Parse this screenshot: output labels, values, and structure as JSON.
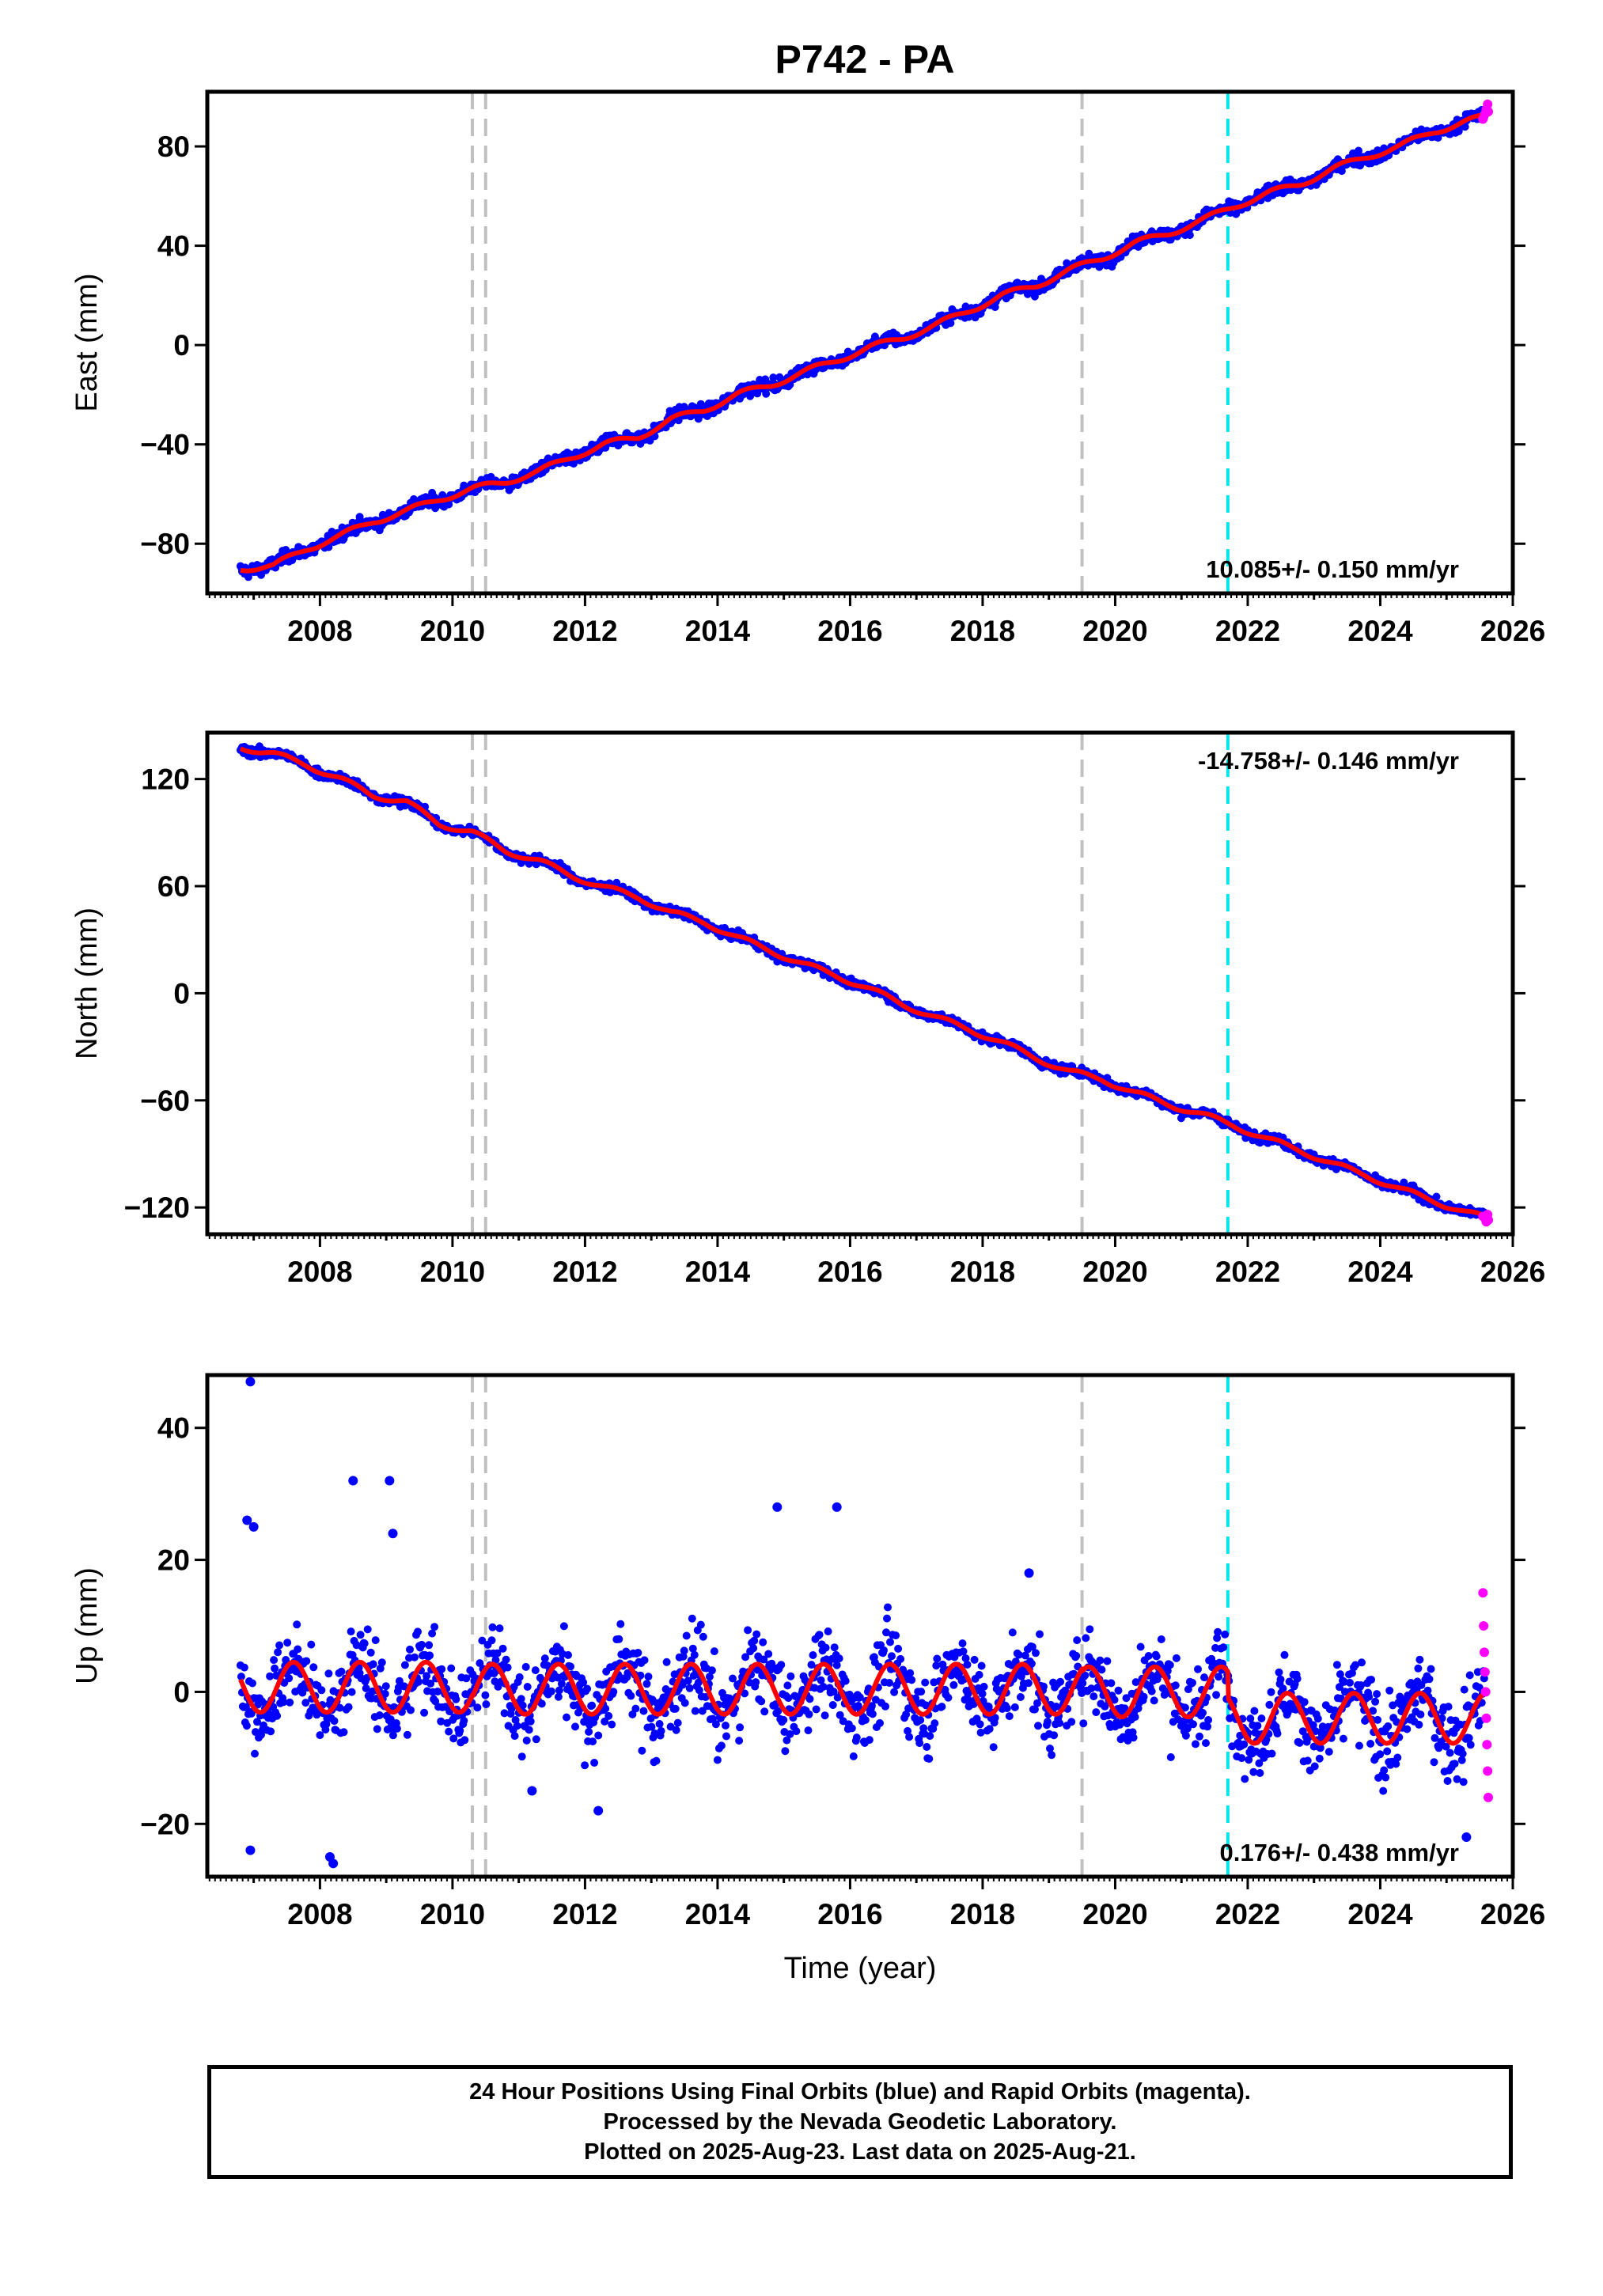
{
  "title": "P742 - PA",
  "colors": {
    "final_orbits": "#0000ff",
    "rapid_orbits": "#ff00ff",
    "model": "#ff0000",
    "equipment_change": "#c0c0c0",
    "earthquake": "#00e5ee"
  },
  "footer": {
    "line1": "24 Hour Positions Using Final Orbits (blue) and Rapid Orbits (magenta).",
    "line2": "Processed by the Nevada Geodetic Laboratory.",
    "line3": "Plotted on 2025-Aug-23. Last data on 2025-Aug-21."
  },
  "chart_data": [
    {
      "type": "scatter",
      "component": "east",
      "ylabel": "East (mm)",
      "xlabel": "",
      "xlim": [
        2006.3,
        2026.0
      ],
      "ylim": [
        -100,
        102
      ],
      "xticks": [
        2008,
        2010,
        2012,
        2014,
        2016,
        2018,
        2020,
        2022,
        2024,
        2026
      ],
      "yticks": [
        -80,
        -40,
        0,
        40,
        80
      ],
      "rate_label": "10.085+/- 0.150 mm/yr",
      "rate_position": "bottom-right",
      "gray_lines": [
        2010.3,
        2010.5,
        2019.5
      ],
      "cyan_lines": [
        2021.7
      ],
      "series": [
        {
          "role": "model",
          "x": [
            2006.8,
            2007.3,
            2007.8,
            2008.3,
            2008.8,
            2009.3,
            2009.8,
            2010.3,
            2010.8,
            2011.3,
            2011.8,
            2012.3,
            2012.8,
            2013.3,
            2013.8,
            2014.3,
            2014.8,
            2015.3,
            2015.8,
            2016.3,
            2016.8,
            2017.3,
            2017.8,
            2018.3,
            2018.8,
            2019.3,
            2019.8,
            2020.3,
            2020.8,
            2021.3,
            2021.8,
            2022.3,
            2022.8,
            2023.3,
            2023.8,
            2024.3,
            2024.8,
            2025.3,
            2025.6
          ],
          "y": [
            -90,
            -89,
            -82,
            -77,
            -71,
            -67,
            -62,
            -58,
            -55,
            -51,
            -45,
            -40,
            -37,
            -30,
            -26,
            -20,
            -16,
            -11,
            -6,
            -1,
            3,
            8,
            14,
            20,
            24,
            30,
            35,
            41,
            45,
            50,
            56,
            61,
            65,
            71,
            76,
            80,
            86,
            90,
            92
          ]
        },
        {
          "role": "rapid",
          "x": [
            2025.55,
            2025.58,
            2025.6,
            2025.62,
            2025.63
          ],
          "y": [
            91,
            93,
            95,
            97,
            94
          ]
        }
      ]
    },
    {
      "type": "scatter",
      "component": "north",
      "ylabel": "North (mm)",
      "xlabel": "",
      "xlim": [
        2006.3,
        2026.0
      ],
      "ylim": [
        -135,
        146
      ],
      "xticks": [
        2008,
        2010,
        2012,
        2014,
        2016,
        2018,
        2020,
        2022,
        2024,
        2026
      ],
      "yticks": [
        -120,
        -60,
        0,
        60,
        120
      ],
      "rate_label": "-14.758+/- 0.146 mm/yr",
      "rate_position": "top-right",
      "gray_lines": [
        2010.3,
        2010.5,
        2019.5
      ],
      "cyan_lines": [
        2021.7
      ],
      "series": [
        {
          "role": "model",
          "x": [
            2006.8,
            2007.3,
            2007.8,
            2008.3,
            2008.8,
            2009.3,
            2009.8,
            2010.3,
            2010.8,
            2011.3,
            2011.8,
            2012.3,
            2012.8,
            2013.3,
            2013.8,
            2014.3,
            2014.8,
            2015.3,
            2015.8,
            2016.3,
            2016.8,
            2017.3,
            2017.8,
            2018.3,
            2018.8,
            2019.3,
            2019.8,
            2020.3,
            2020.8,
            2021.3,
            2021.8,
            2022.3,
            2022.8,
            2023.3,
            2023.8,
            2024.3,
            2024.8,
            2025.3,
            2025.6
          ],
          "y": [
            138,
            134,
            128,
            120,
            111,
            107,
            95,
            90,
            80,
            74,
            66,
            59,
            54,
            45,
            40,
            31,
            24,
            16,
            10,
            2,
            -6,
            -14,
            -20,
            -28,
            -36,
            -44,
            -48,
            -56,
            -62,
            -68,
            -74,
            -82,
            -88,
            -96,
            -102,
            -110,
            -116,
            -123,
            -126
          ]
        },
        {
          "role": "rapid",
          "x": [
            2025.55,
            2025.58,
            2025.6,
            2025.62,
            2025.63
          ],
          "y": [
            -125,
            -126,
            -128,
            -124,
            -127
          ]
        }
      ]
    },
    {
      "type": "scatter",
      "component": "up",
      "ylabel": "Up (mm)",
      "xlabel": "Time (year)",
      "xlim": [
        2006.3,
        2026.0
      ],
      "ylim": [
        -28,
        48
      ],
      "xticks": [
        2008,
        2010,
        2012,
        2014,
        2016,
        2018,
        2020,
        2022,
        2024,
        2026
      ],
      "yticks": [
        -20,
        0,
        20,
        40
      ],
      "rate_label": "0.176+/- 0.438 mm/yr",
      "rate_position": "bottom-right",
      "gray_lines": [
        2010.3,
        2010.5,
        2019.5
      ],
      "cyan_lines": [
        2021.7
      ],
      "series": [
        {
          "role": "model",
          "seasonal": {
            "start": 2006.8,
            "end": 2025.6,
            "amplitude": 3.8,
            "phase_year": 2007.6,
            "offsets": [
              [
                2006.8,
                0.7
              ],
              [
                2010.3,
                0.4
              ],
              [
                2019.5,
                0.0
              ],
              [
                2021.7,
                -4.0
              ]
            ]
          }
        },
        {
          "role": "outliers",
          "x": [
            2006.95,
            2006.9,
            2007.0,
            2008.5,
            2009.05,
            2009.1,
            2014.9,
            2015.8,
            2018.7,
            2008.15,
            2008.2,
            2006.95,
            2011.2,
            2012.2,
            2025.3
          ],
          "y": [
            47,
            26,
            25,
            32,
            32,
            24,
            28,
            28,
            18,
            -25,
            -26,
            -24,
            -15,
            -18,
            -22
          ]
        },
        {
          "role": "rapid",
          "x": [
            2025.55,
            2025.56,
            2025.57,
            2025.58,
            2025.59,
            2025.6,
            2025.61,
            2025.62,
            2025.63
          ],
          "y": [
            15,
            10,
            6,
            3,
            0,
            -4,
            -8,
            -12,
            -16
          ]
        }
      ]
    }
  ]
}
